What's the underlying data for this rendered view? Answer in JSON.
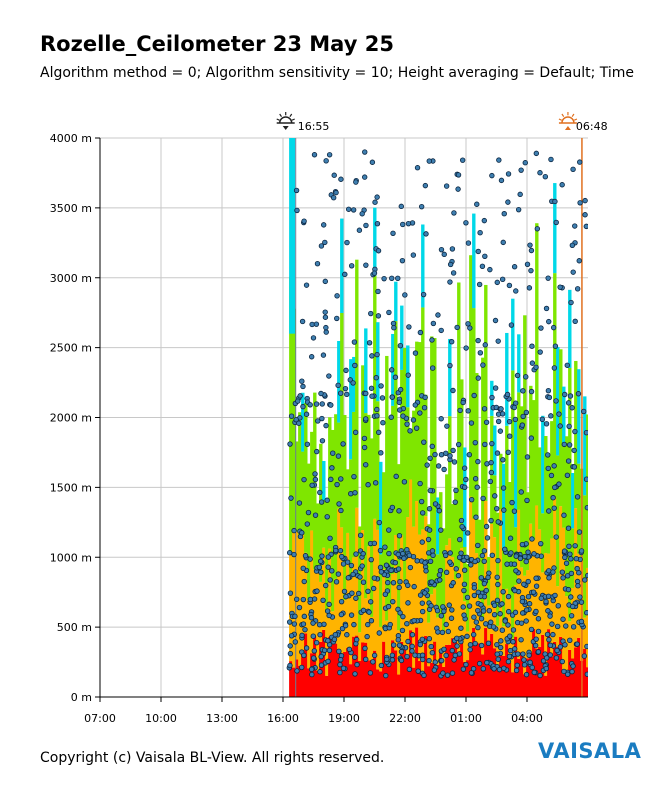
{
  "title": "Rozelle_Ceilometer 23 May 25",
  "subtitle": "Algorithm method = 0; Algorithm sensitivity = 10; Height averaging = Default; Time",
  "footer": {
    "copyright": "Copyright (c) Vaisala BL-View. All rights reserved.",
    "logo": "VAISALA"
  },
  "colors": {
    "grid": "#c8c8c8",
    "axis": "#000000",
    "sunset_icon": "#222222",
    "sunrise_icon": "#e07020",
    "sunrise_line": "#e07020",
    "sunset_line": "#6a7d95",
    "dot_fill": "#3f7fb0",
    "dot_stroke": "#0a2540",
    "backscatter_low": "#ff0000",
    "backscatter_mid": "#ffb400",
    "backscatter_high": "#7fe600",
    "backscatter_top": "#00d8e8"
  },
  "chart_data": {
    "type": "heatmap",
    "ylim": [
      0,
      4000
    ],
    "yticks": [
      "4000 m",
      "3500 m",
      "3000 m",
      "2500 m",
      "2000 m",
      "1500 m",
      "1000 m",
      "500 m",
      "0 m"
    ],
    "ytick_values": [
      4000,
      3500,
      3000,
      2500,
      2000,
      1500,
      1000,
      500,
      0
    ],
    "xlim_hours": [
      7,
      31
    ],
    "xticks": [
      "07:00",
      "10:00",
      "13:00",
      "16:00",
      "19:00",
      "22:00",
      "01:00",
      "04:00"
    ],
    "xtick_values_hours": [
      7,
      10,
      13,
      16,
      19,
      22,
      25,
      28
    ],
    "data_start_hours": 16.3,
    "sunset": {
      "time": "16:55",
      "hours": 16.92
    },
    "sunrise": {
      "time": "06:48",
      "hours": 30.8
    },
    "layers": [
      {
        "name": "backscatter",
        "description_bands_m": [
          [
            0,
            450,
            "backscatter_low"
          ],
          [
            450,
            1300,
            "backscatter_mid"
          ],
          [
            1300,
            3300,
            "backscatter_high"
          ],
          [
            3300,
            4000,
            "backscatter_top"
          ]
        ]
      }
    ]
  }
}
